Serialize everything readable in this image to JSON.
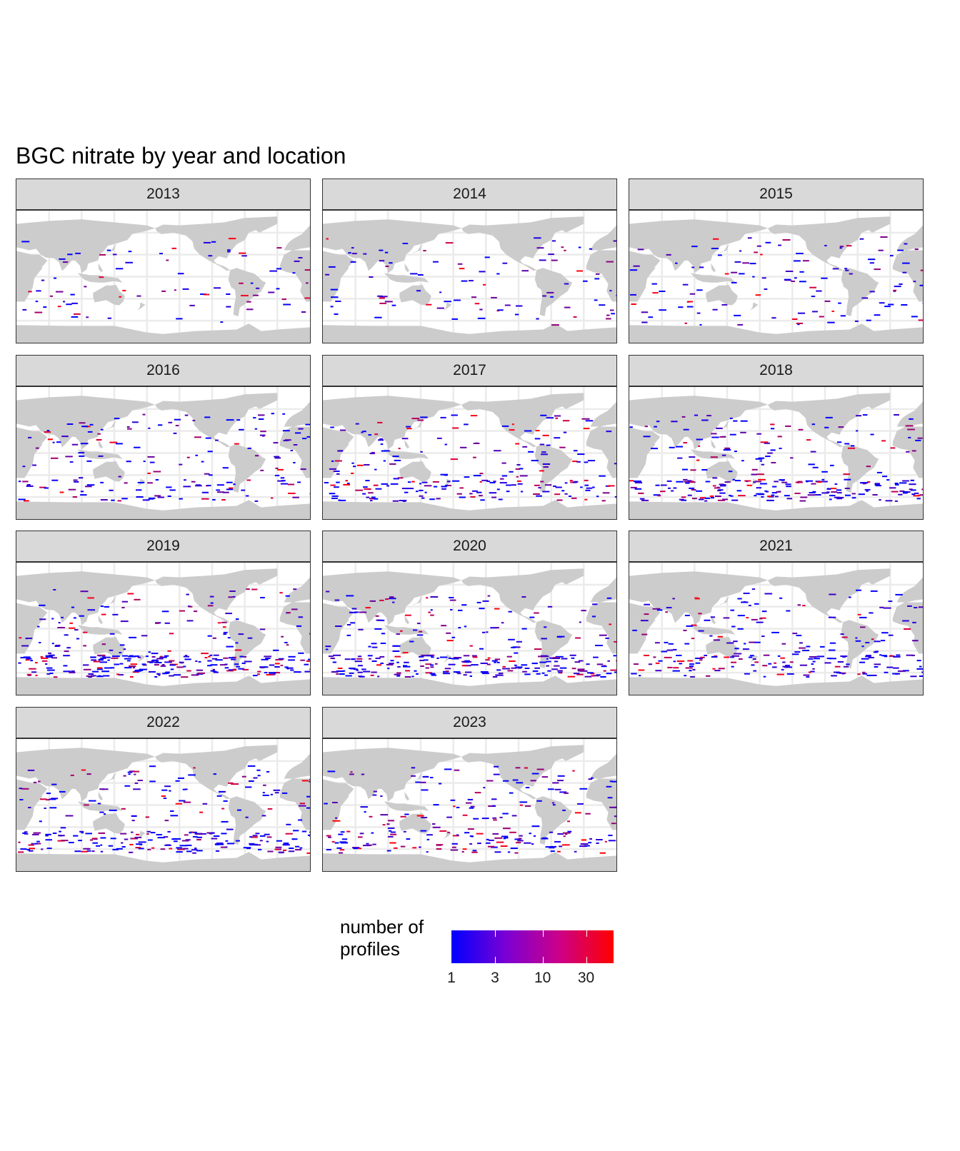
{
  "title": "BGC nitrate by year and location",
  "colors": {
    "land": "#cccccc",
    "grid": "#ebebeb",
    "strip": "#d9d9d9",
    "low": "#0000ff",
    "high": "#ff0000"
  },
  "panels": [
    {
      "year": "2013",
      "density": 0.15
    },
    {
      "year": "2014",
      "density": 0.2
    },
    {
      "year": "2015",
      "density": 0.3
    },
    {
      "year": "2016",
      "density": 0.5
    },
    {
      "year": "2017",
      "density": 0.7
    },
    {
      "year": "2018",
      "density": 0.85
    },
    {
      "year": "2019",
      "density": 1.0
    },
    {
      "year": "2020",
      "density": 0.95
    },
    {
      "year": "2021",
      "density": 0.75
    },
    {
      "year": "2022",
      "density": 0.9
    },
    {
      "year": "2023",
      "density": 0.7
    }
  ],
  "legend": {
    "title_line1": "number of",
    "title_line2": "profiles",
    "ticks": [
      "1",
      "3",
      "10",
      "30"
    ],
    "tick_values": [
      1,
      3,
      10,
      30
    ],
    "max_value": 60
  }
}
